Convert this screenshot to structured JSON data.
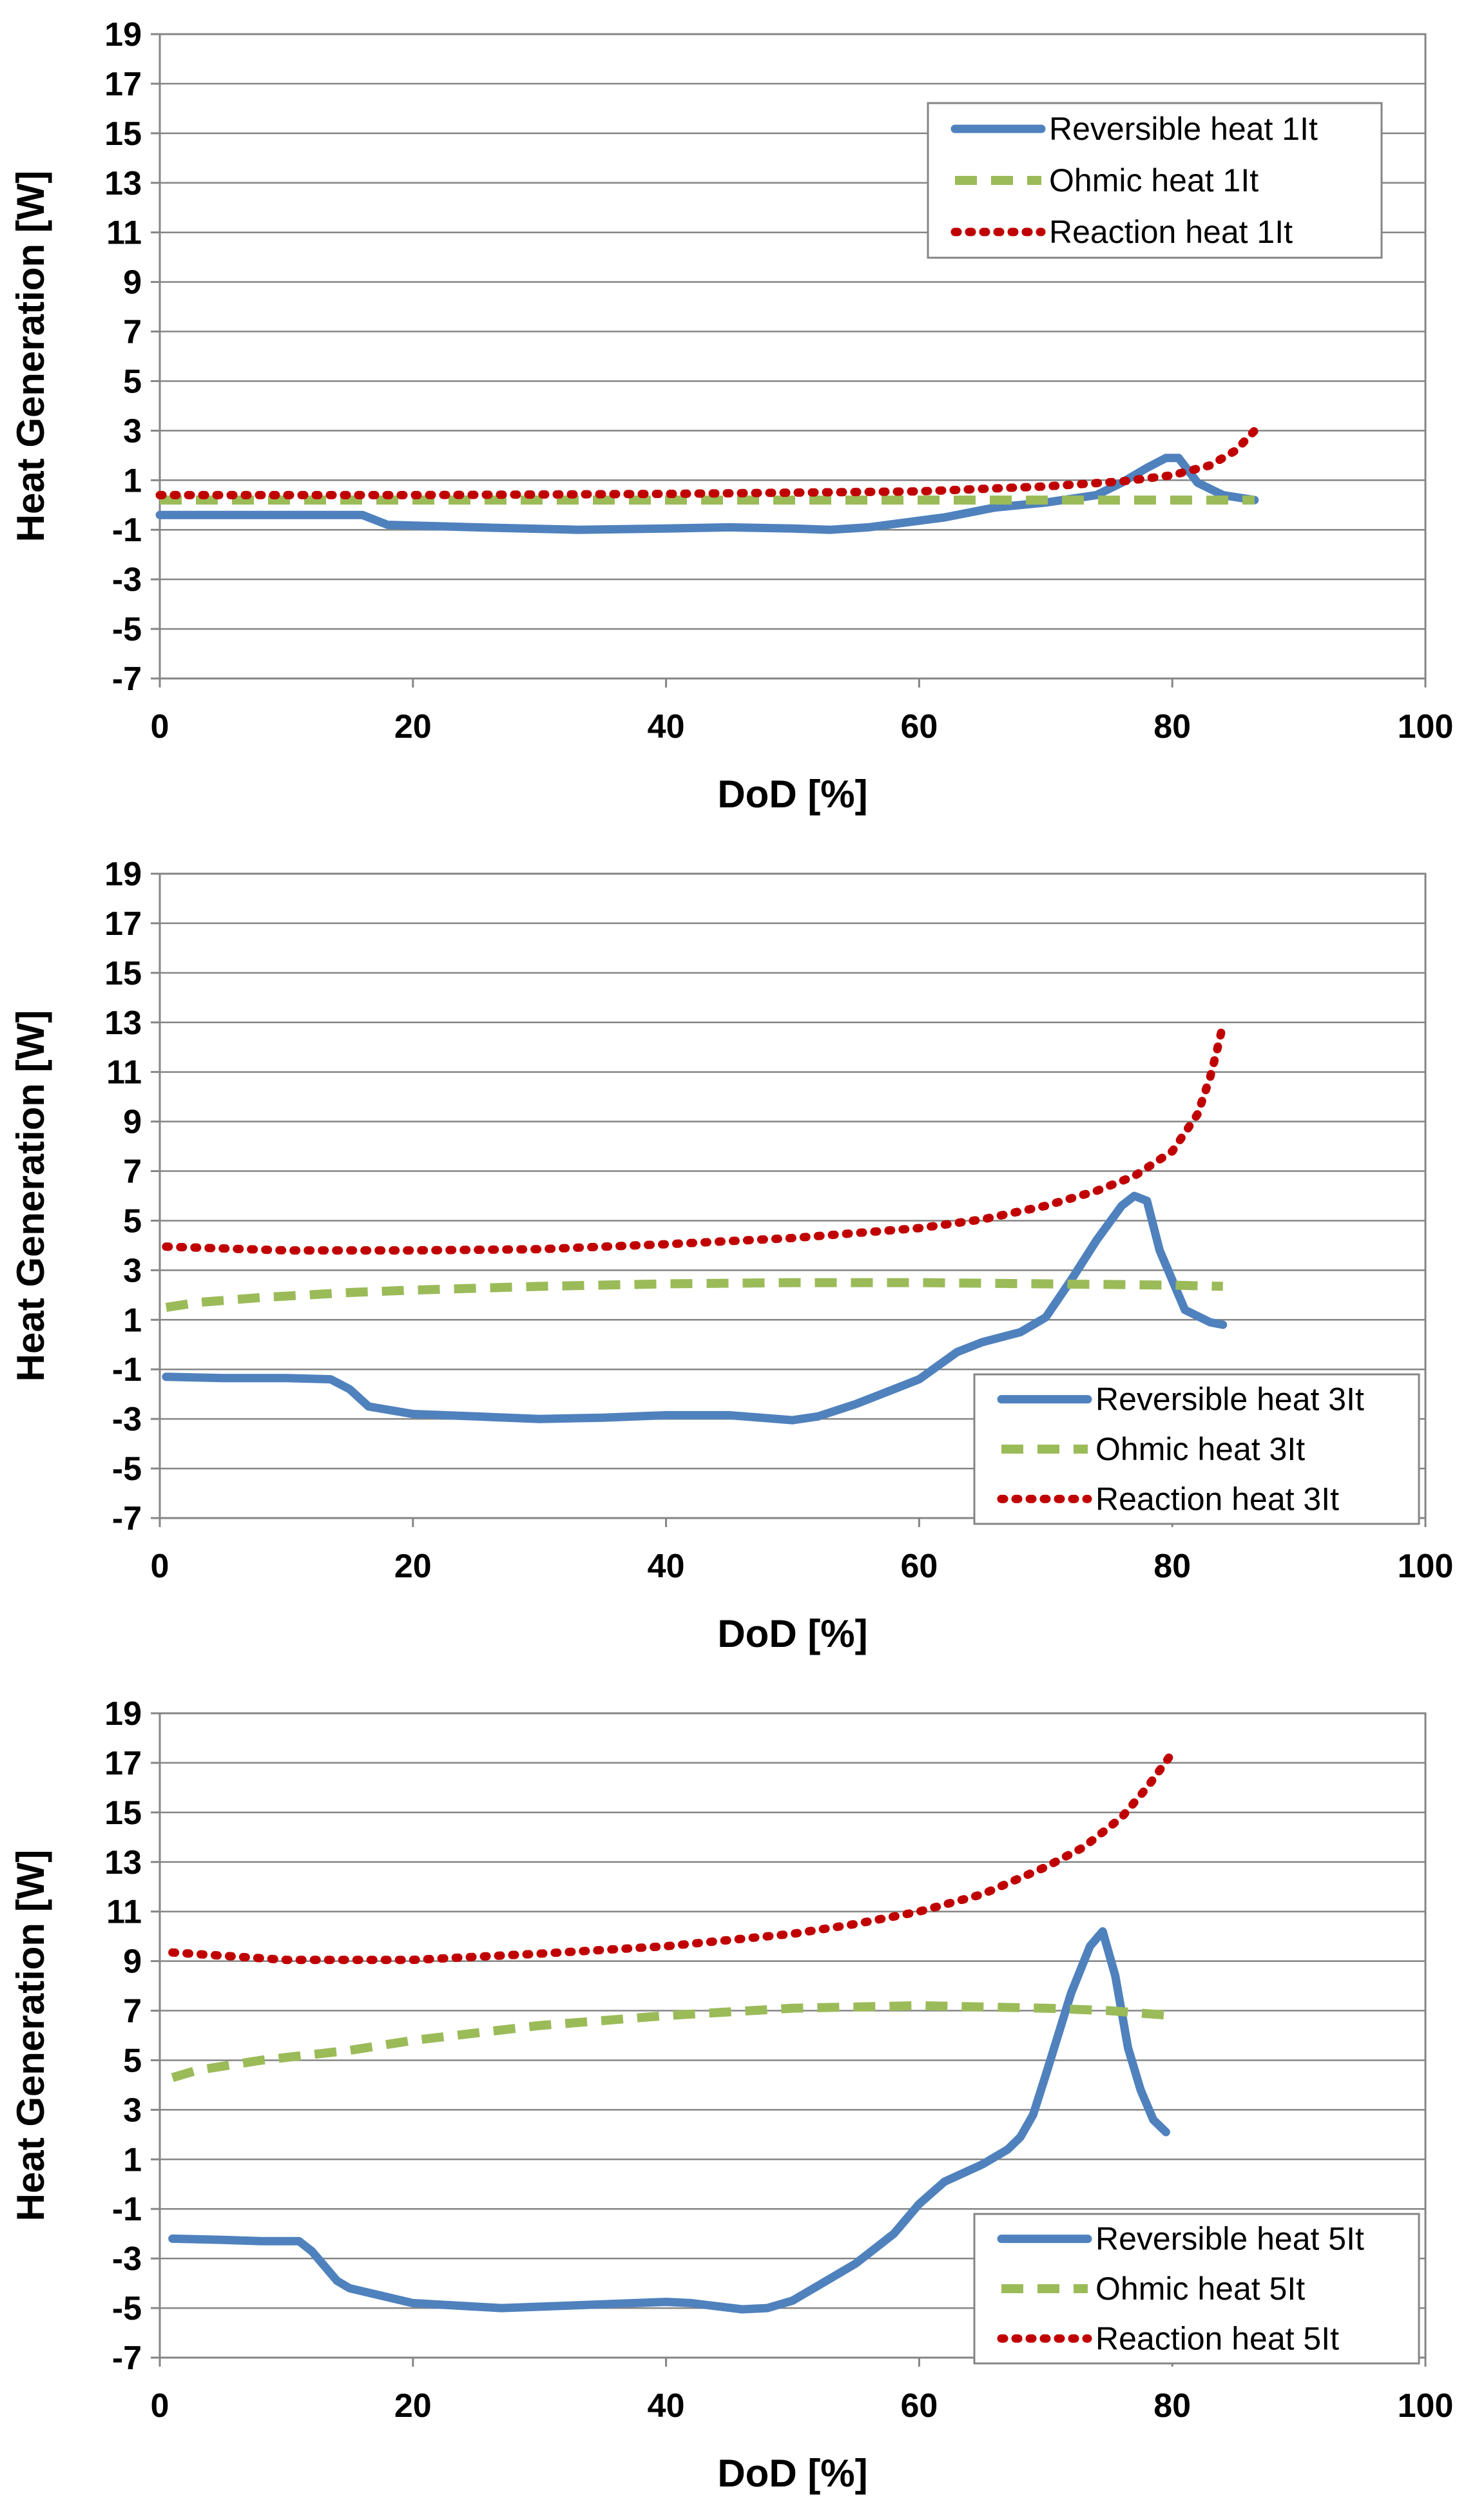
{
  "colors": {
    "reversible": "#4f81bd",
    "ohmic": "#9bbb59",
    "reaction": "#c00000",
    "grid": "#858585",
    "frame": "#858585"
  },
  "chart_data": [
    {
      "type": "line",
      "title": "",
      "xlabel": "DoD [%]",
      "ylabel": "Heat Generation [W]",
      "xlim": [
        0,
        100
      ],
      "ylim": [
        -7,
        19
      ],
      "xticks": [
        0,
        20,
        40,
        60,
        80,
        100
      ],
      "yticks": [
        -7,
        -5,
        -3,
        -1,
        1,
        3,
        5,
        7,
        9,
        11,
        13,
        15,
        17,
        19
      ],
      "legend_position": "top-right",
      "series": [
        {
          "name": "Reversible heat 1It",
          "style": "solid",
          "color": "#4f81bd",
          "x": [
            0,
            5,
            10,
            16,
            18,
            25,
            33,
            40,
            45,
            50,
            53,
            56,
            62,
            66,
            70,
            74,
            76,
            78,
            79.5,
            80.5,
            82,
            84,
            86.5
          ],
          "y": [
            -0.4,
            -0.4,
            -0.4,
            -0.4,
            -0.8,
            -0.9,
            -1.0,
            -0.95,
            -0.9,
            -0.95,
            -1.0,
            -0.9,
            -0.5,
            -0.1,
            0.1,
            0.4,
            0.9,
            1.5,
            1.9,
            1.9,
            0.9,
            0.4,
            0.2
          ]
        },
        {
          "name": "Ohmic heat 1It",
          "style": "dashed",
          "color": "#9bbb59",
          "x": [
            0,
            20,
            40,
            60,
            80,
            86.5
          ],
          "y": [
            0.2,
            0.2,
            0.2,
            0.2,
            0.2,
            0.2
          ]
        },
        {
          "name": "Reaction heat 1It",
          "style": "dotted",
          "color": "#c00000",
          "x": [
            0,
            20,
            40,
            60,
            70,
            76,
            80,
            83,
            85,
            86.5
          ],
          "y": [
            0.4,
            0.4,
            0.45,
            0.55,
            0.75,
            0.95,
            1.2,
            1.6,
            2.2,
            3.0
          ]
        }
      ]
    },
    {
      "type": "line",
      "title": "",
      "xlabel": "DoD [%]",
      "ylabel": "Heat Generation [W]",
      "xlim": [
        0,
        100
      ],
      "ylim": [
        -7,
        19
      ],
      "xticks": [
        0,
        20,
        40,
        60,
        80,
        100
      ],
      "yticks": [
        -7,
        -5,
        -3,
        -1,
        1,
        3,
        5,
        7,
        9,
        11,
        13,
        15,
        17,
        19
      ],
      "legend_position": "bottom-right",
      "series": [
        {
          "name": "Reversible heat 3It",
          "style": "solid",
          "color": "#4f81bd",
          "x": [
            0.5,
            5,
            10,
            13.5,
            15,
            16.5,
            20,
            25,
            30,
            35,
            40,
            45,
            50,
            52,
            55,
            60,
            63,
            65,
            68,
            70,
            72,
            74,
            76,
            77,
            78,
            79,
            81,
            83,
            84
          ],
          "y": [
            -1.3,
            -1.35,
            -1.35,
            -1.4,
            -1.8,
            -2.5,
            -2.8,
            -2.9,
            -3.0,
            -2.95,
            -2.85,
            -2.85,
            -3.05,
            -2.9,
            -2.4,
            -1.4,
            -0.3,
            0.1,
            0.5,
            1.1,
            2.6,
            4.2,
            5.6,
            6.0,
            5.8,
            3.8,
            1.4,
            0.9,
            0.8
          ]
        },
        {
          "name": "Ohmic heat 3It",
          "style": "dashed",
          "color": "#9bbb59",
          "x": [
            0.5,
            3,
            8,
            15,
            20,
            30,
            40,
            50,
            60,
            70,
            80,
            84
          ],
          "y": [
            1.5,
            1.7,
            1.9,
            2.1,
            2.2,
            2.35,
            2.45,
            2.5,
            2.5,
            2.45,
            2.4,
            2.35
          ]
        },
        {
          "name": "Reaction heat 3It",
          "style": "dotted",
          "color": "#c00000",
          "x": [
            0.5,
            10,
            20,
            30,
            40,
            50,
            60,
            65,
            70,
            74,
            77,
            80,
            82,
            83,
            83.5,
            84
          ],
          "y": [
            3.95,
            3.8,
            3.8,
            3.85,
            4.05,
            4.3,
            4.7,
            5.05,
            5.6,
            6.2,
            6.8,
            7.8,
            9.3,
            10.8,
            11.8,
            12.9
          ]
        }
      ]
    },
    {
      "type": "line",
      "title": "",
      "xlabel": "DoD [%]",
      "ylabel": "Heat Generation [W]",
      "xlim": [
        0,
        100
      ],
      "ylim": [
        -7,
        19
      ],
      "xticks": [
        0,
        20,
        40,
        60,
        80,
        100
      ],
      "yticks": [
        -7,
        -5,
        -3,
        -1,
        1,
        3,
        5,
        7,
        9,
        11,
        13,
        15,
        17,
        19
      ],
      "legend_position": "bottom-right",
      "series": [
        {
          "name": "Reversible heat 5It",
          "style": "solid",
          "color": "#4f81bd",
          "x": [
            1,
            5,
            8,
            11,
            12,
            14,
            15,
            20,
            27,
            35,
            40,
            42,
            46,
            48,
            50,
            52,
            55,
            58,
            60,
            62,
            65,
            67,
            68,
            69,
            70,
            72,
            73.5,
            74.5,
            75.5,
            76.5,
            77.5,
            78.5,
            79.5
          ],
          "y": [
            -2.2,
            -2.25,
            -2.3,
            -2.3,
            -2.7,
            -3.9,
            -4.2,
            -4.8,
            -5.0,
            -4.85,
            -4.75,
            -4.8,
            -5.05,
            -5.0,
            -4.7,
            -4.1,
            -3.2,
            -2.0,
            -0.8,
            0.1,
            0.8,
            1.4,
            1.9,
            2.8,
            4.4,
            7.7,
            9.6,
            10.2,
            8.4,
            5.5,
            3.8,
            2.6,
            2.1
          ]
        },
        {
          "name": "Ohmic heat 5It",
          "style": "dashed",
          "color": "#9bbb59",
          "x": [
            1,
            3,
            8,
            15,
            20,
            30,
            40,
            50,
            60,
            70,
            75,
            80
          ],
          "y": [
            4.3,
            4.6,
            5.0,
            5.4,
            5.8,
            6.4,
            6.8,
            7.1,
            7.2,
            7.1,
            7.0,
            6.8
          ]
        },
        {
          "name": "Reaction heat 5It",
          "style": "dotted",
          "color": "#c00000",
          "x": [
            1,
            10,
            20,
            30,
            40,
            50,
            55,
            60,
            65,
            70,
            73,
            76,
            78,
            79,
            80
          ],
          "y": [
            9.35,
            9.05,
            9.05,
            9.3,
            9.6,
            10.1,
            10.5,
            11.0,
            11.7,
            12.8,
            13.6,
            14.8,
            16.0,
            16.7,
            17.4
          ]
        }
      ]
    }
  ]
}
